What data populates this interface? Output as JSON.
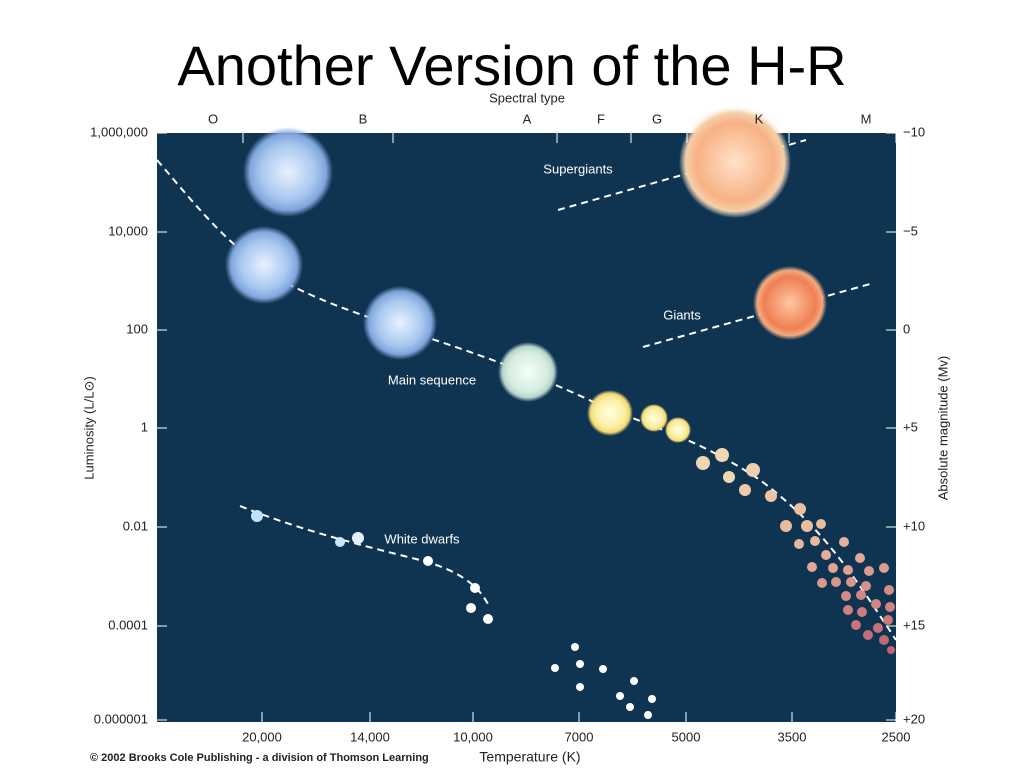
{
  "title": "Another Version of the H-R",
  "diagram": {
    "spectral_type_label": "Spectral type",
    "spectral_types": [
      "O",
      "B",
      "A",
      "F",
      "G",
      "K",
      "M"
    ],
    "luminosity_ticks": [
      "1,000,000",
      "10,000",
      "100",
      "1",
      "0.01",
      "0.0001",
      "0.000001"
    ],
    "magnitude_ticks": [
      "−10",
      "−5",
      "0",
      "+5",
      "+10",
      "+15",
      "+20"
    ],
    "temperature_ticks": [
      "20,000",
      "14,000",
      "10,000",
      "7000",
      "5000",
      "3500",
      "2500"
    ],
    "y_label": "Luminosity (L/L⊙)",
    "y2_label": "Absolute magnitude (Mv)",
    "x_label": "Temperature (K)",
    "regions": [
      "Supergiants",
      "Giants",
      "Main sequence",
      "White dwarfs"
    ]
  },
  "footer": "© 2002 Brooks Cole Publishing - a division of Thomson Learning"
}
